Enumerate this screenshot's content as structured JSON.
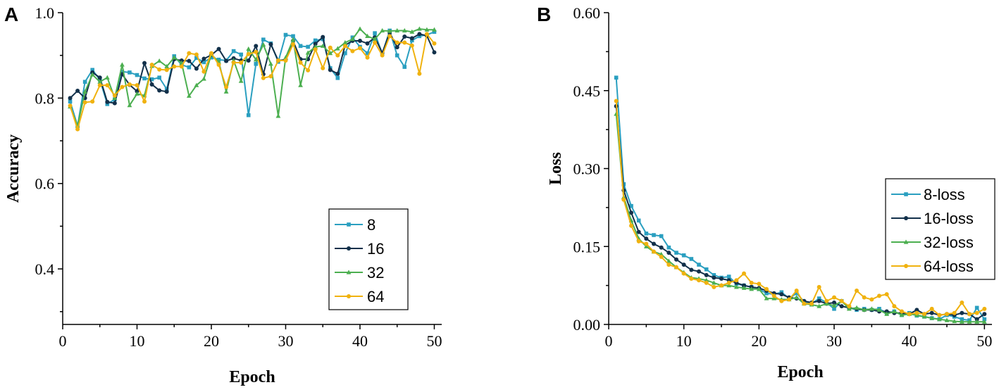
{
  "chart_data": [
    {
      "panel": "A",
      "type": "line",
      "title": "",
      "xlabel": "Epoch",
      "ylabel": "Accuracy",
      "xlim": [
        0,
        51
      ],
      "ylim": [
        0.27,
        1.0
      ],
      "xticks": [
        0,
        10,
        20,
        30,
        40,
        50
      ],
      "xtick_labels": [
        "0",
        "10",
        "20",
        "30",
        "40",
        "50"
      ],
      "yticks": [
        0.4,
        0.6,
        0.8,
        1.0
      ],
      "ytick_labels": [
        "0.4",
        "0.6",
        "0.8",
        "1.0"
      ],
      "legend_position": "bottom-right",
      "x": [
        1,
        2,
        3,
        4,
        5,
        6,
        7,
        8,
        9,
        10,
        11,
        12,
        13,
        14,
        15,
        16,
        17,
        18,
        19,
        20,
        21,
        22,
        23,
        24,
        25,
        26,
        27,
        28,
        29,
        30,
        31,
        32,
        33,
        34,
        35,
        36,
        37,
        38,
        39,
        40,
        41,
        42,
        43,
        44,
        45,
        46,
        47,
        48,
        49,
        50
      ],
      "series": [
        {
          "name": "8",
          "color": "#2a9fc0",
          "marker": "square",
          "values": [
            0.792,
            0.735,
            0.838,
            0.866,
            0.843,
            0.786,
            0.797,
            0.862,
            0.86,
            0.854,
            0.846,
            0.844,
            0.848,
            0.821,
            0.898,
            0.878,
            0.872,
            0.894,
            0.884,
            0.895,
            0.89,
            0.888,
            0.91,
            0.902,
            0.76,
            0.88,
            0.937,
            0.928,
            0.885,
            0.948,
            0.945,
            0.922,
            0.92,
            0.935,
            0.938,
            0.87,
            0.847,
            0.905,
            0.942,
            0.92,
            0.905,
            0.952,
            0.904,
            0.958,
            0.9,
            0.873,
            0.935,
            0.945,
            0.948,
            0.955
          ]
        },
        {
          "name": "16",
          "color": "#12304a",
          "marker": "circle",
          "values": [
            0.8,
            0.817,
            0.8,
            0.86,
            0.848,
            0.791,
            0.788,
            0.856,
            0.831,
            0.816,
            0.882,
            0.832,
            0.818,
            0.815,
            0.891,
            0.888,
            0.887,
            0.869,
            0.892,
            0.901,
            0.915,
            0.887,
            0.893,
            0.888,
            0.888,
            0.922,
            0.856,
            0.926,
            0.888,
            0.89,
            0.934,
            0.891,
            0.891,
            0.927,
            0.943,
            0.866,
            0.857,
            0.924,
            0.934,
            0.934,
            0.928,
            0.942,
            0.906,
            0.953,
            0.919,
            0.944,
            0.94,
            0.95,
            0.946,
            0.907
          ]
        },
        {
          "name": "32",
          "color": "#4caf50",
          "marker": "triangle",
          "values": [
            0.78,
            0.735,
            0.815,
            0.855,
            0.838,
            0.848,
            0.8,
            0.878,
            0.783,
            0.81,
            0.806,
            0.875,
            0.887,
            0.874,
            0.895,
            0.882,
            0.805,
            0.83,
            0.845,
            0.902,
            0.885,
            0.815,
            0.888,
            0.84,
            0.915,
            0.89,
            0.925,
            0.88,
            0.758,
            0.895,
            0.937,
            0.83,
            0.906,
            0.92,
            0.922,
            0.905,
            0.916,
            0.93,
            0.938,
            0.962,
            0.945,
            0.938,
            0.958,
            0.957,
            0.958,
            0.958,
            0.955,
            0.962,
            0.96,
            0.96
          ]
        },
        {
          "name": "64",
          "color": "#f0b20f",
          "marker": "circle",
          "values": [
            0.782,
            0.727,
            0.79,
            0.792,
            0.83,
            0.83,
            0.806,
            0.826,
            0.832,
            0.83,
            0.792,
            0.878,
            0.867,
            0.866,
            0.874,
            0.874,
            0.905,
            0.902,
            0.862,
            0.905,
            0.878,
            0.826,
            0.883,
            0.883,
            0.903,
            0.908,
            0.847,
            0.851,
            0.888,
            0.888,
            0.926,
            0.883,
            0.865,
            0.914,
            0.87,
            0.918,
            0.9,
            0.922,
            0.91,
            0.917,
            0.895,
            0.93,
            0.9,
            0.945,
            0.93,
            0.93,
            0.923,
            0.857,
            0.95,
            0.928
          ]
        }
      ]
    },
    {
      "panel": "B",
      "type": "line",
      "title": "",
      "xlabel": "Epoch",
      "ylabel": "Loss",
      "xlim": [
        0,
        51
      ],
      "ylim": [
        0.0,
        0.6
      ],
      "xticks": [
        0,
        10,
        20,
        30,
        40,
        50
      ],
      "xtick_labels": [
        "0",
        "10",
        "20",
        "30",
        "40",
        "50"
      ],
      "yticks": [
        0.0,
        0.15,
        0.3,
        0.45,
        0.6
      ],
      "ytick_labels": [
        "0.00",
        "0.15",
        "0.30",
        "0.45",
        "0.60"
      ],
      "legend_position": "right",
      "x": [
        1,
        2,
        3,
        4,
        5,
        6,
        7,
        8,
        9,
        10,
        11,
        12,
        13,
        14,
        15,
        16,
        17,
        18,
        19,
        20,
        21,
        22,
        23,
        24,
        25,
        26,
        27,
        28,
        29,
        30,
        31,
        32,
        33,
        34,
        35,
        36,
        37,
        38,
        39,
        40,
        41,
        42,
        43,
        44,
        45,
        46,
        47,
        48,
        49,
        50
      ],
      "series": [
        {
          "name": "8-loss",
          "color": "#2a9fc0",
          "marker": "square",
          "values": [
            0.475,
            0.27,
            0.228,
            0.2,
            0.175,
            0.172,
            0.17,
            0.148,
            0.138,
            0.133,
            0.126,
            0.115,
            0.106,
            0.095,
            0.09,
            0.092,
            0.078,
            0.075,
            0.072,
            0.068,
            0.06,
            0.058,
            0.062,
            0.05,
            0.06,
            0.044,
            0.04,
            0.05,
            0.042,
            0.03,
            0.045,
            0.032,
            0.028,
            0.03,
            0.028,
            0.03,
            0.022,
            0.025,
            0.018,
            0.022,
            0.017,
            0.015,
            0.012,
            0.01,
            0.018,
            0.015,
            0.01,
            0.008,
            0.032,
            0.01
          ]
        },
        {
          "name": "16-loss",
          "color": "#12304a",
          "marker": "circle",
          "values": [
            0.42,
            0.258,
            0.215,
            0.178,
            0.165,
            0.155,
            0.148,
            0.138,
            0.125,
            0.115,
            0.105,
            0.102,
            0.095,
            0.09,
            0.088,
            0.085,
            0.08,
            0.075,
            0.072,
            0.07,
            0.065,
            0.06,
            0.058,
            0.052,
            0.05,
            0.045,
            0.042,
            0.045,
            0.04,
            0.042,
            0.035,
            0.032,
            0.03,
            0.028,
            0.028,
            0.025,
            0.025,
            0.022,
            0.022,
            0.02,
            0.028,
            0.02,
            0.022,
            0.018,
            0.02,
            0.018,
            0.022,
            0.02,
            0.01,
            0.02
          ]
        },
        {
          "name": "32-loss",
          "color": "#4caf50",
          "marker": "triangle",
          "values": [
            0.405,
            0.245,
            0.2,
            0.165,
            0.15,
            0.14,
            0.135,
            0.122,
            0.11,
            0.1,
            0.09,
            0.088,
            0.085,
            0.08,
            0.075,
            0.075,
            0.072,
            0.07,
            0.068,
            0.068,
            0.05,
            0.05,
            0.048,
            0.048,
            0.052,
            0.04,
            0.038,
            0.035,
            0.04,
            0.036,
            0.045,
            0.03,
            0.032,
            0.028,
            0.03,
            0.028,
            0.02,
            0.025,
            0.018,
            0.02,
            0.018,
            0.015,
            0.012,
            0.01,
            0.008,
            0.006,
            0.005,
            0.005,
            0.005,
            0.005
          ]
        },
        {
          "name": "64-loss",
          "color": "#f0b20f",
          "marker": "circle",
          "values": [
            0.43,
            0.24,
            0.19,
            0.16,
            0.155,
            0.14,
            0.13,
            0.115,
            0.11,
            0.098,
            0.088,
            0.085,
            0.08,
            0.072,
            0.075,
            0.08,
            0.085,
            0.098,
            0.08,
            0.078,
            0.068,
            0.055,
            0.045,
            0.048,
            0.065,
            0.04,
            0.04,
            0.072,
            0.045,
            0.052,
            0.045,
            0.035,
            0.065,
            0.052,
            0.048,
            0.055,
            0.058,
            0.035,
            0.025,
            0.02,
            0.022,
            0.02,
            0.03,
            0.018,
            0.02,
            0.022,
            0.042,
            0.02,
            0.022,
            0.03
          ]
        }
      ]
    }
  ]
}
